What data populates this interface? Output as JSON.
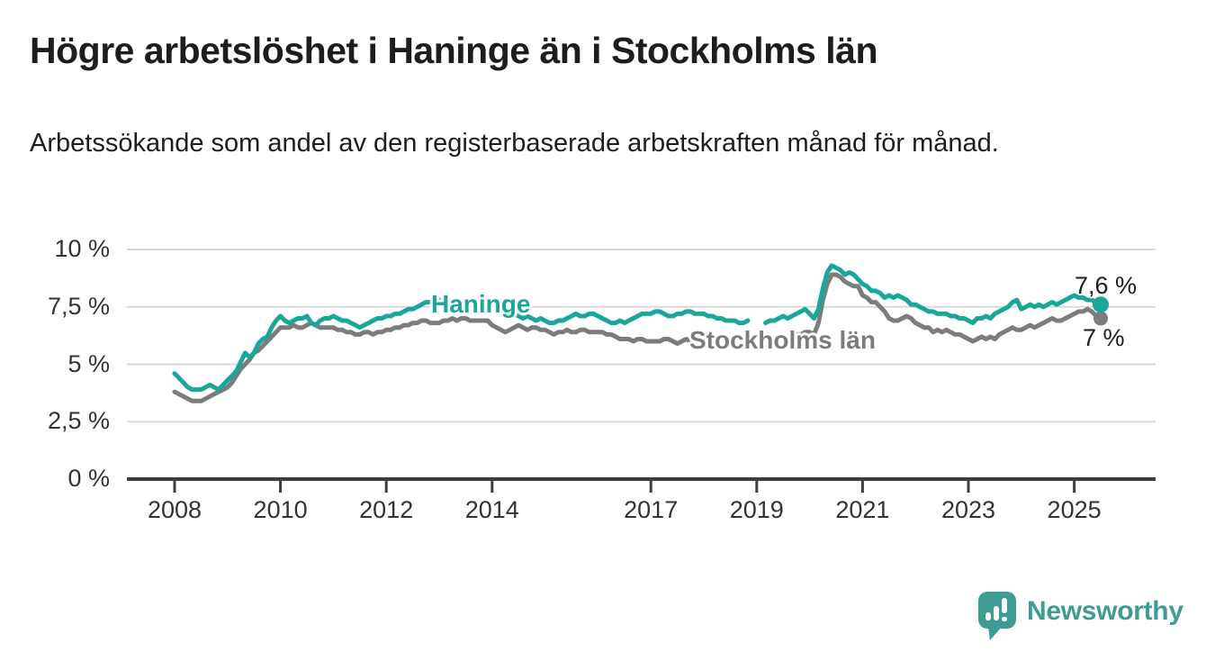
{
  "title": "Högre arbetslöshet i Haninge än i Stockholms län",
  "subtitle": "Arbetssökande som andel av den registerbaserade arbetskraften månad för månad.",
  "branding": {
    "logo_text": "Newsworthy",
    "logo_color": "#3f9c94",
    "logo_icon": "speech-bubble-bar-chart"
  },
  "chart_data": {
    "type": "line",
    "title": "Högre arbetslöshet i Haninge än i Stockholms län",
    "xlabel": "",
    "ylabel": "",
    "unit": "%",
    "frequency": "monthly",
    "x_start": "2008-01",
    "x_end": "2025-07",
    "ylim": [
      0,
      10
    ],
    "grid": "horizontal",
    "legend_position": "inline-labels",
    "yticks": [
      {
        "value": 0,
        "label": "0 %"
      },
      {
        "value": 2.5,
        "label": "2,5 %"
      },
      {
        "value": 5,
        "label": "5 %"
      },
      {
        "value": 7.5,
        "label": "7,5 %"
      },
      {
        "value": 10,
        "label": "10 %"
      }
    ],
    "xticks": [
      {
        "year": 2008,
        "label": "2008"
      },
      {
        "year": 2010,
        "label": "2010"
      },
      {
        "year": 2012,
        "label": "2012"
      },
      {
        "year": 2014,
        "label": "2014"
      },
      {
        "year": 2017,
        "label": "2017"
      },
      {
        "year": 2019,
        "label": "2019"
      },
      {
        "year": 2021,
        "label": "2021"
      },
      {
        "year": 2023,
        "label": "2023"
      },
      {
        "year": 2025,
        "label": "2025"
      }
    ],
    "series": [
      {
        "name": "Stockholms län",
        "color": "#7c7c7c",
        "end_label": "7 %",
        "end_value": 7.0,
        "values_by_year": {
          "2008": [
            3.8,
            3.7,
            3.6,
            3.5,
            3.4,
            3.4,
            3.4,
            3.5,
            3.6,
            3.7,
            3.8,
            3.9
          ],
          "2009": [
            4.0,
            4.2,
            4.5,
            4.8,
            5.0,
            5.2,
            5.5,
            5.6,
            5.8,
            6.0,
            6.2,
            6.4
          ],
          "2010": [
            6.6,
            6.6,
            6.6,
            6.7,
            6.6,
            6.6,
            6.7,
            6.8,
            6.7,
            6.6,
            6.6,
            6.6
          ],
          "2011": [
            6.6,
            6.5,
            6.5,
            6.4,
            6.4,
            6.3,
            6.3,
            6.4,
            6.4,
            6.3,
            6.4,
            6.4
          ],
          "2012": [
            6.5,
            6.5,
            6.6,
            6.6,
            6.7,
            6.7,
            6.8,
            6.8,
            6.9,
            6.9,
            6.8,
            6.8
          ],
          "2013": [
            6.8,
            6.9,
            6.9,
            7.0,
            6.9,
            7.0,
            7.0,
            6.9,
            6.9,
            6.9,
            6.9,
            6.9
          ],
          "2014": [
            6.7,
            6.6,
            6.5,
            6.4,
            6.5,
            6.6,
            6.7,
            6.6,
            6.5,
            6.6,
            6.6,
            6.5
          ],
          "2015": [
            6.5,
            6.4,
            6.3,
            6.4,
            6.4,
            6.5,
            6.4,
            6.4,
            6.5,
            6.5,
            6.4,
            6.4
          ],
          "2016": [
            6.4,
            6.4,
            6.3,
            6.3,
            6.2,
            6.1,
            6.1,
            6.1,
            6.0,
            6.1,
            6.1,
            6.0
          ],
          "2017": [
            6.0,
            6.0,
            6.0,
            6.1,
            6.1,
            6.0,
            5.9,
            6.0,
            6.1,
            6.0,
            6.0,
            5.9
          ],
          "2018": [
            6.0,
            6.0,
            5.9,
            5.9,
            5.8,
            5.8,
            5.9,
            5.9,
            5.8,
            5.8,
            5.9,
            null
          ],
          "2019": [
            null,
            null,
            6.0,
            6.0,
            6.1,
            6.1,
            6.2,
            6.2,
            6.2,
            6.3,
            6.3,
            6.4
          ],
          "2020": [
            6.4,
            6.3,
            6.8,
            7.8,
            8.5,
            8.9,
            8.9,
            8.8,
            8.6,
            8.5,
            8.4,
            8.4
          ],
          "2021": [
            8.0,
            7.9,
            7.7,
            7.7,
            7.5,
            7.3,
            7.0,
            6.9,
            6.9,
            7.0,
            7.1,
            7.0
          ],
          "2022": [
            6.8,
            6.7,
            6.6,
            6.6,
            6.4,
            6.5,
            6.4,
            6.5,
            6.4,
            6.3,
            6.3,
            6.2
          ],
          "2023": [
            6.1,
            6.0,
            6.1,
            6.2,
            6.1,
            6.2,
            6.1,
            6.3,
            6.4,
            6.5,
            6.6,
            6.5
          ],
          "2024": [
            6.5,
            6.6,
            6.7,
            6.6,
            6.7,
            6.8,
            6.9,
            7.0,
            6.9,
            6.9,
            7.0,
            7.1
          ],
          "2025": [
            7.2,
            7.3,
            7.3,
            7.4,
            7.3,
            7.1,
            7.0
          ]
        }
      },
      {
        "name": "Haninge",
        "color": "#1ba69a",
        "end_label": "7,6 %",
        "end_value": 7.6,
        "values_by_year": {
          "2008": [
            4.6,
            4.4,
            4.2,
            4.0,
            3.9,
            3.9,
            3.9,
            4.0,
            4.1,
            4.0,
            3.9,
            4.1
          ],
          "2009": [
            4.3,
            4.5,
            4.7,
            5.1,
            5.5,
            5.3,
            5.5,
            5.9,
            6.1,
            6.2,
            6.6,
            6.9
          ],
          "2010": [
            7.1,
            6.9,
            6.8,
            6.9,
            7.0,
            7.0,
            7.1,
            6.8,
            6.7,
            6.9,
            7.0,
            7.0
          ],
          "2011": [
            7.1,
            7.0,
            6.9,
            6.9,
            6.8,
            6.7,
            6.6,
            6.7,
            6.8,
            6.9,
            7.0,
            7.0
          ],
          "2012": [
            7.1,
            7.1,
            7.2,
            7.2,
            7.3,
            7.4,
            7.4,
            7.5,
            7.6,
            7.7,
            7.7,
            7.8
          ],
          "2013": [
            7.8,
            7.7,
            7.6,
            7.5,
            7.5,
            7.6,
            7.5,
            7.4,
            7.5,
            7.4,
            7.3,
            7.4
          ],
          "2014": [
            7.4,
            7.3,
            7.3,
            7.2,
            7.1,
            7.2,
            7.1,
            7.0,
            7.1,
            7.0,
            6.9,
            7.0
          ],
          "2015": [
            6.9,
            6.8,
            6.8,
            6.9,
            6.9,
            7.0,
            7.1,
            7.2,
            7.1,
            7.1,
            7.2,
            7.2
          ],
          "2016": [
            7.1,
            7.0,
            6.9,
            6.8,
            6.8,
            6.9,
            6.8,
            6.9,
            7.0,
            7.1,
            7.2,
            7.2
          ],
          "2017": [
            7.2,
            7.3,
            7.3,
            7.2,
            7.1,
            7.1,
            7.2,
            7.2,
            7.3,
            7.3,
            7.2,
            7.2
          ],
          "2018": [
            7.2,
            7.1,
            7.1,
            7.0,
            7.0,
            6.9,
            6.9,
            6.9,
            6.8,
            6.8,
            6.9,
            null
          ],
          "2019": [
            null,
            null,
            6.8,
            6.9,
            6.9,
            7.0,
            7.1,
            7.0,
            7.1,
            7.2,
            7.3,
            7.4
          ],
          "2020": [
            7.2,
            7.0,
            7.4,
            8.3,
            9.0,
            9.3,
            9.2,
            9.1,
            8.9,
            9.0,
            8.9,
            8.7
          ],
          "2021": [
            8.5,
            8.4,
            8.2,
            8.2,
            8.1,
            7.9,
            8.0,
            7.9,
            8.0,
            7.9,
            7.8,
            7.6
          ],
          "2022": [
            7.6,
            7.5,
            7.4,
            7.3,
            7.3,
            7.2,
            7.2,
            7.2,
            7.1,
            7.1,
            7.0,
            7.0
          ],
          "2023": [
            6.9,
            6.8,
            7.0,
            7.0,
            7.1,
            7.0,
            7.2,
            7.3,
            7.4,
            7.5,
            7.7,
            7.8
          ],
          "2024": [
            7.4,
            7.5,
            7.6,
            7.5,
            7.6,
            7.5,
            7.6,
            7.7,
            7.6,
            7.7,
            7.8,
            7.9
          ],
          "2025": [
            8.0,
            7.9,
            7.9,
            7.8,
            7.8,
            7.7,
            7.6
          ]
        }
      }
    ]
  }
}
